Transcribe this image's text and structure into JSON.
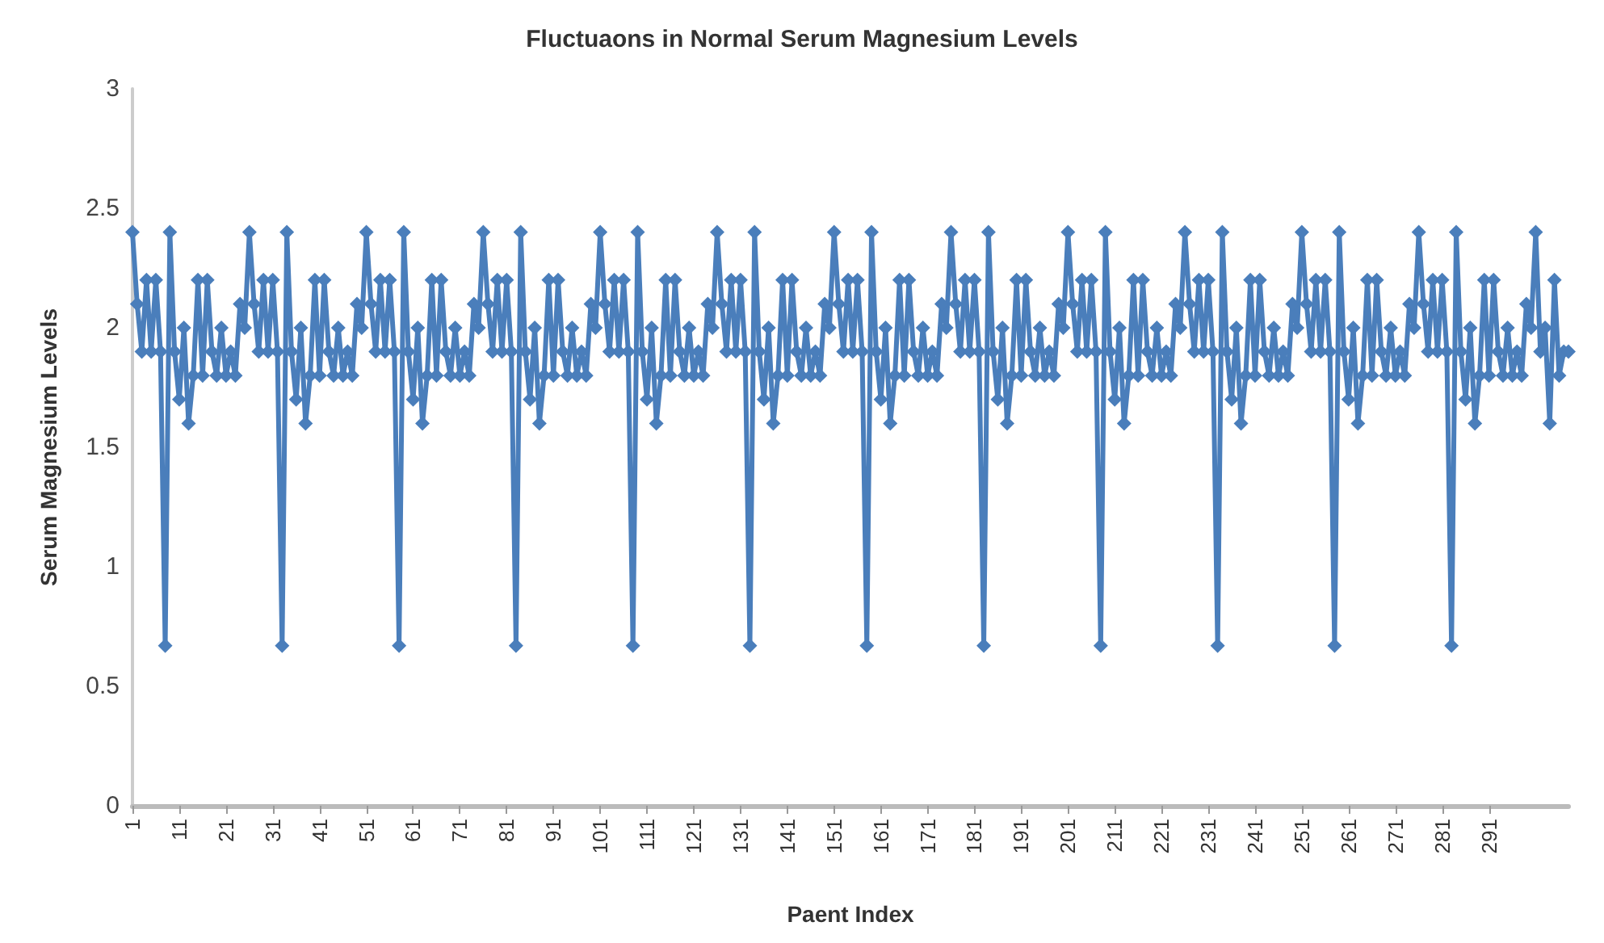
{
  "chart_data": {
    "type": "line",
    "title": "Fluctuaons in Normal Serum Magnesium Levels",
    "xlabel": "Paent Index",
    "ylabel": "Serum Magnesium Levels",
    "categories": [
      "1",
      null,
      null,
      null,
      null,
      null,
      null,
      null,
      null,
      null,
      "11",
      null,
      null,
      null,
      null,
      null,
      null,
      null,
      null,
      null,
      "21",
      null,
      null,
      null,
      null,
      null,
      null,
      null,
      null,
      null,
      "31",
      null,
      null,
      null,
      null,
      null,
      null,
      null,
      null,
      null,
      "41",
      null,
      null,
      null,
      null,
      null,
      null,
      null,
      null,
      null,
      "51",
      null,
      null,
      null,
      null,
      null,
      null,
      null,
      null,
      null,
      "61",
      null,
      null,
      null,
      null,
      null,
      null,
      null,
      null,
      null,
      "71",
      null,
      null,
      null,
      null,
      null,
      null,
      null,
      null,
      null,
      "81",
      null,
      null,
      null,
      null,
      null,
      null,
      null,
      null,
      null,
      "91",
      null,
      null,
      null,
      null,
      null,
      null,
      null,
      null,
      null,
      "101",
      null,
      null,
      null,
      null,
      null,
      null,
      null,
      null,
      null,
      "111",
      null,
      null,
      null,
      null,
      null,
      null,
      null,
      null,
      null,
      "121",
      null,
      null,
      null,
      null,
      null,
      null,
      null,
      null,
      null,
      "131",
      null,
      null,
      null,
      null,
      null,
      null,
      null,
      null,
      null,
      "141",
      null,
      null,
      null,
      null,
      null,
      null,
      null,
      null,
      null,
      "151",
      null,
      null,
      null,
      null,
      null,
      null,
      null,
      null,
      null,
      "161",
      null,
      null,
      null,
      null,
      null,
      null,
      null,
      null,
      null,
      "171",
      null,
      null,
      null,
      null,
      null,
      null,
      null,
      null,
      null,
      "181",
      null,
      null,
      null,
      null,
      null,
      null,
      null,
      null,
      null,
      "191",
      null,
      null,
      null,
      null,
      null,
      null,
      null,
      null,
      null,
      "201",
      null,
      null,
      null,
      null,
      null,
      null,
      null,
      null,
      null,
      "211",
      null,
      null,
      null,
      null,
      null,
      null,
      null,
      null,
      null,
      "221",
      null,
      null,
      null,
      null,
      null,
      null,
      null,
      null,
      null,
      "231",
      null,
      null,
      null,
      null,
      null,
      null,
      null,
      null,
      null,
      "241",
      null,
      null,
      null,
      null,
      null,
      null,
      null,
      null,
      null,
      "251",
      null,
      null,
      null,
      null,
      null,
      null,
      null,
      null,
      null,
      "261",
      null,
      null,
      null,
      null,
      null,
      null,
      null,
      null,
      null,
      "271",
      null,
      null,
      null,
      null,
      null,
      null,
      null,
      null,
      null,
      "281",
      null,
      null,
      null,
      null,
      null,
      null,
      null,
      null,
      null,
      "291",
      null,
      null,
      null,
      null,
      null,
      null,
      null,
      null,
      null,
      null,
      null,
      null,
      null,
      null,
      null,
      null,
      null
    ],
    "series": [
      {
        "color": "#4a7ebb",
        "values": [
          2.4,
          2.1,
          1.9,
          2.2,
          1.9,
          2.2,
          1.9,
          0.67,
          2.4,
          1.9,
          1.7,
          2.0,
          1.6,
          1.8,
          2.2,
          1.8,
          2.2,
          1.9,
          1.8,
          2.0,
          1.8,
          1.9,
          1.8,
          2.1,
          2.0,
          2.4,
          2.1,
          1.9,
          2.2,
          1.9,
          2.2,
          1.9,
          0.67,
          2.4,
          1.9,
          1.7,
          2.0,
          1.6,
          1.8,
          2.2,
          1.8,
          2.2,
          1.9,
          1.8,
          2.0,
          1.8,
          1.9,
          1.8,
          2.1,
          2.0,
          2.4,
          2.1,
          1.9,
          2.2,
          1.9,
          2.2,
          1.9,
          0.67,
          2.4,
          1.9,
          1.7,
          2.0,
          1.6,
          1.8,
          2.2,
          1.8,
          2.2,
          1.9,
          1.8,
          2.0,
          1.8,
          1.9,
          1.8,
          2.1,
          2.0,
          2.4,
          2.1,
          1.9,
          2.2,
          1.9,
          2.2,
          1.9,
          0.67,
          2.4,
          1.9,
          1.7,
          2.0,
          1.6,
          1.8,
          2.2,
          1.8,
          2.2,
          1.9,
          1.8,
          2.0,
          1.8,
          1.9,
          1.8,
          2.1,
          2.0,
          2.4,
          2.1,
          1.9,
          2.2,
          1.9,
          2.2,
          1.9,
          0.67,
          2.4,
          1.9,
          1.7,
          2.0,
          1.6,
          1.8,
          2.2,
          1.8,
          2.2,
          1.9,
          1.8,
          2.0,
          1.8,
          1.9,
          1.8,
          2.1,
          2.0,
          2.4,
          2.1,
          1.9,
          2.2,
          1.9,
          2.2,
          1.9,
          0.67,
          2.4,
          1.9,
          1.7,
          2.0,
          1.6,
          1.8,
          2.2,
          1.8,
          2.2,
          1.9,
          1.8,
          2.0,
          1.8,
          1.9,
          1.8,
          2.1,
          2.0,
          2.4,
          2.1,
          1.9,
          2.2,
          1.9,
          2.2,
          1.9,
          0.67,
          2.4,
          1.9,
          1.7,
          2.0,
          1.6,
          1.8,
          2.2,
          1.8,
          2.2,
          1.9,
          1.8,
          2.0,
          1.8,
          1.9,
          1.8,
          2.1,
          2.0,
          2.4,
          2.1,
          1.9,
          2.2,
          1.9,
          2.2,
          1.9,
          0.67,
          2.4,
          1.9,
          1.7,
          2.0,
          1.6,
          1.8,
          2.2,
          1.8,
          2.2,
          1.9,
          1.8,
          2.0,
          1.8,
          1.9,
          1.8,
          2.1,
          2.0,
          2.4,
          2.1,
          1.9,
          2.2,
          1.9,
          2.2,
          1.9,
          0.67,
          2.4,
          1.9,
          1.7,
          2.0,
          1.6,
          1.8,
          2.2,
          1.8,
          2.2,
          1.9,
          1.8,
          2.0,
          1.8,
          1.9,
          1.8,
          2.1,
          2.0,
          2.4,
          2.1,
          1.9,
          2.2,
          1.9,
          2.2,
          1.9,
          0.67,
          2.4,
          1.9,
          1.7,
          2.0,
          1.6,
          1.8,
          2.2,
          1.8,
          2.2,
          1.9,
          1.8,
          2.0,
          1.8,
          1.9,
          1.8,
          2.1,
          2.0,
          2.4,
          2.1,
          1.9,
          2.2,
          1.9,
          2.2,
          1.9,
          0.67,
          2.4,
          1.9,
          1.7,
          2.0,
          1.6,
          1.8,
          2.2,
          1.8,
          2.2,
          1.9,
          1.8,
          2.0,
          1.8,
          1.9,
          1.8,
          2.1,
          2.0,
          2.4,
          2.1,
          1.9,
          2.2,
          1.9,
          2.2,
          1.9,
          0.67,
          2.4,
          1.9,
          1.7,
          2.0,
          1.6,
          1.8,
          2.2,
          1.8,
          2.2,
          1.9,
          1.8,
          2.0,
          1.8,
          1.9,
          1.8,
          2.1,
          2.0,
          2.4,
          1.9,
          2.0,
          1.6,
          2.2,
          1.8,
          1.9,
          1.9
        ]
      }
    ],
    "ylim": [
      0,
      3
    ],
    "yticks": [
      0,
      0.5,
      1,
      1.5,
      2,
      2.5,
      3
    ],
    "grid": false,
    "marker": "diamond",
    "line_style": "solid"
  }
}
